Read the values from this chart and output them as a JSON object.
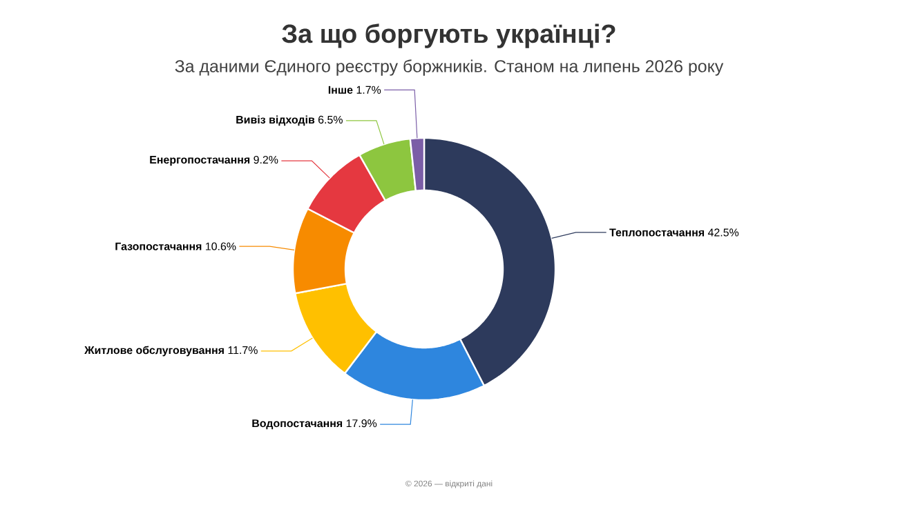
{
  "chart_data": {
    "type": "donut",
    "title": "За що боргують українці?",
    "subtitle": "За даними Єдиного реєстру боржників. Станом на липень 2026 року",
    "categories": [
      "Теплопостачання",
      "Водопостачання",
      "Житлове обслуговування",
      "Газопостачання",
      "Енергопостачання",
      "Вивіз відходів",
      "Інше"
    ],
    "values": [
      42.5,
      17.9,
      11.7,
      10.6,
      9.2,
      6.5,
      1.7
    ],
    "value_labels": [
      "42.5%",
      "17.9%",
      "11.7%",
      "10.6%",
      "9.2%",
      "6.5%",
      "1.7%"
    ],
    "colors": [
      "#2d3a5c",
      "#2e86de",
      "#ffc000",
      "#f78b00",
      "#e53840",
      "#8dc63f",
      "#7b5ea7"
    ],
    "annotations": [
      "© 2026 — відкриті дані"
    ]
  }
}
